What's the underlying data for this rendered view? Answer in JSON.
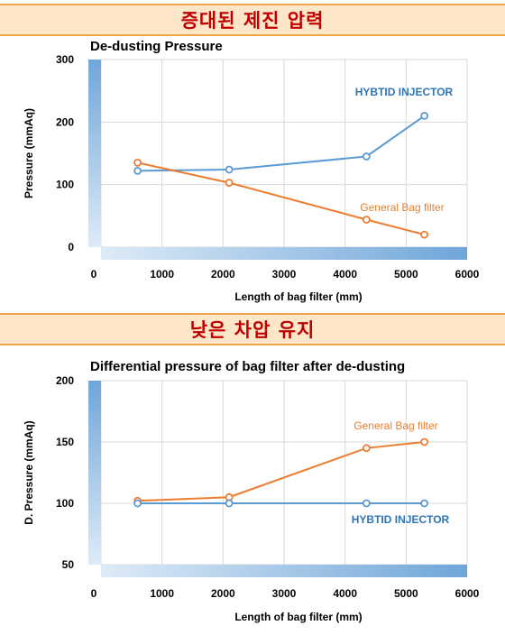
{
  "banners": {
    "top": "증대된 제진 압력",
    "bottom": "낮은 차압 유지"
  },
  "colors": {
    "banner_bg": "#fde7c8",
    "banner_border": "#f0a54a",
    "banner_text": "#c00000",
    "blue_series": "#5b9bd5",
    "orange_series": "#ed7d31",
    "blue_label": "#2e75b6"
  },
  "chart_data": [
    {
      "type": "line",
      "title": "De-dusting Pressure",
      "xlabel": "Length of bag filter (mm)",
      "ylabel": "Pressure (mmAq)",
      "xlim": [
        0,
        6000
      ],
      "ylim": [
        0,
        300
      ],
      "xticks": [
        0,
        1000,
        2000,
        3000,
        4000,
        5000,
        6000
      ],
      "yticks": [
        0,
        100,
        200,
        300
      ],
      "grid": true,
      "series": [
        {
          "name": "HYBTID INJECTOR",
          "color": "#5b9bd5",
          "points": [
            [
              600,
              122
            ],
            [
              2100,
              124
            ],
            [
              4350,
              145
            ],
            [
              5300,
              210
            ]
          ]
        },
        {
          "name": "General Bag filter",
          "color": "#ed7d31",
          "points": [
            [
              600,
              135
            ],
            [
              2100,
              103
            ],
            [
              4350,
              44
            ],
            [
              5300,
              20
            ]
          ]
        }
      ]
    },
    {
      "type": "line",
      "title": "Differential pressure of bag filter after de-dusting",
      "xlabel": "Length of bag filter (mm)",
      "ylabel": "D. Pressure (mmAq)",
      "xlim": [
        0,
        6000
      ],
      "ylim": [
        50,
        200
      ],
      "xticks": [
        0,
        1000,
        2000,
        3000,
        4000,
        5000,
        6000
      ],
      "yticks": [
        50,
        100,
        150,
        200
      ],
      "grid": true,
      "series": [
        {
          "name": "General Bag filter",
          "color": "#ed7d31",
          "points": [
            [
              600,
              102
            ],
            [
              2100,
              105
            ],
            [
              4350,
              145
            ],
            [
              5300,
              150
            ]
          ]
        },
        {
          "name": "HYBTID INJECTOR",
          "color": "#5b9bd5",
          "points": [
            [
              600,
              100
            ],
            [
              2100,
              100
            ],
            [
              4350,
              100
            ],
            [
              5300,
              100
            ]
          ]
        }
      ]
    }
  ]
}
